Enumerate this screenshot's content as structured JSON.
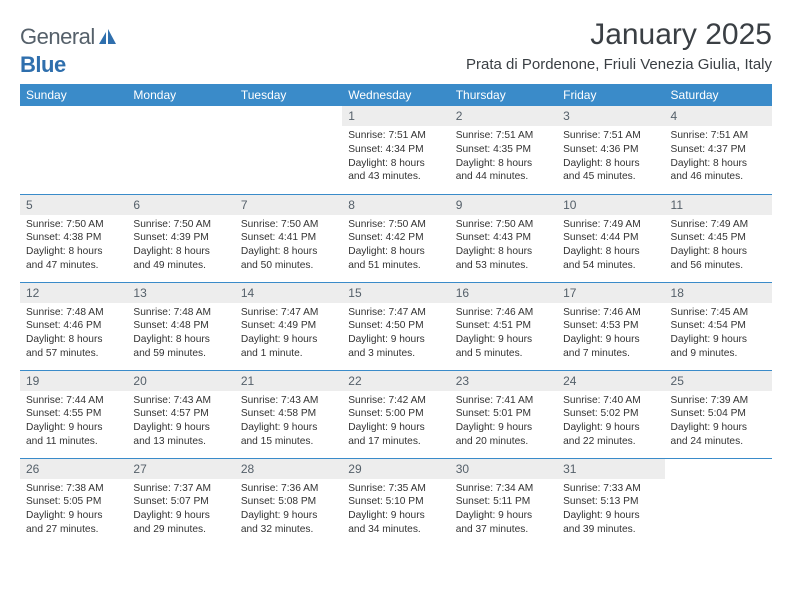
{
  "logo": {
    "part1": "General",
    "part2": "Blue"
  },
  "title": "January 2025",
  "location": "Prata di Pordenone, Friuli Venezia Giulia, Italy",
  "colors": {
    "header_bg": "#3a8bc9",
    "header_text": "#ffffff",
    "daynum_bg": "#ededed",
    "border": "#3a8bc9",
    "logo_gray": "#55606a",
    "logo_blue": "#2f6fad"
  },
  "day_headers": [
    "Sunday",
    "Monday",
    "Tuesday",
    "Wednesday",
    "Thursday",
    "Friday",
    "Saturday"
  ],
  "weeks": [
    [
      {
        "n": "",
        "lines": []
      },
      {
        "n": "",
        "lines": []
      },
      {
        "n": "",
        "lines": []
      },
      {
        "n": "1",
        "lines": [
          "Sunrise: 7:51 AM",
          "Sunset: 4:34 PM",
          "Daylight: 8 hours",
          "and 43 minutes."
        ]
      },
      {
        "n": "2",
        "lines": [
          "Sunrise: 7:51 AM",
          "Sunset: 4:35 PM",
          "Daylight: 8 hours",
          "and 44 minutes."
        ]
      },
      {
        "n": "3",
        "lines": [
          "Sunrise: 7:51 AM",
          "Sunset: 4:36 PM",
          "Daylight: 8 hours",
          "and 45 minutes."
        ]
      },
      {
        "n": "4",
        "lines": [
          "Sunrise: 7:51 AM",
          "Sunset: 4:37 PM",
          "Daylight: 8 hours",
          "and 46 minutes."
        ]
      }
    ],
    [
      {
        "n": "5",
        "lines": [
          "Sunrise: 7:50 AM",
          "Sunset: 4:38 PM",
          "Daylight: 8 hours",
          "and 47 minutes."
        ]
      },
      {
        "n": "6",
        "lines": [
          "Sunrise: 7:50 AM",
          "Sunset: 4:39 PM",
          "Daylight: 8 hours",
          "and 49 minutes."
        ]
      },
      {
        "n": "7",
        "lines": [
          "Sunrise: 7:50 AM",
          "Sunset: 4:41 PM",
          "Daylight: 8 hours",
          "and 50 minutes."
        ]
      },
      {
        "n": "8",
        "lines": [
          "Sunrise: 7:50 AM",
          "Sunset: 4:42 PM",
          "Daylight: 8 hours",
          "and 51 minutes."
        ]
      },
      {
        "n": "9",
        "lines": [
          "Sunrise: 7:50 AM",
          "Sunset: 4:43 PM",
          "Daylight: 8 hours",
          "and 53 minutes."
        ]
      },
      {
        "n": "10",
        "lines": [
          "Sunrise: 7:49 AM",
          "Sunset: 4:44 PM",
          "Daylight: 8 hours",
          "and 54 minutes."
        ]
      },
      {
        "n": "11",
        "lines": [
          "Sunrise: 7:49 AM",
          "Sunset: 4:45 PM",
          "Daylight: 8 hours",
          "and 56 minutes."
        ]
      }
    ],
    [
      {
        "n": "12",
        "lines": [
          "Sunrise: 7:48 AM",
          "Sunset: 4:46 PM",
          "Daylight: 8 hours",
          "and 57 minutes."
        ]
      },
      {
        "n": "13",
        "lines": [
          "Sunrise: 7:48 AM",
          "Sunset: 4:48 PM",
          "Daylight: 8 hours",
          "and 59 minutes."
        ]
      },
      {
        "n": "14",
        "lines": [
          "Sunrise: 7:47 AM",
          "Sunset: 4:49 PM",
          "Daylight: 9 hours",
          "and 1 minute."
        ]
      },
      {
        "n": "15",
        "lines": [
          "Sunrise: 7:47 AM",
          "Sunset: 4:50 PM",
          "Daylight: 9 hours",
          "and 3 minutes."
        ]
      },
      {
        "n": "16",
        "lines": [
          "Sunrise: 7:46 AM",
          "Sunset: 4:51 PM",
          "Daylight: 9 hours",
          "and 5 minutes."
        ]
      },
      {
        "n": "17",
        "lines": [
          "Sunrise: 7:46 AM",
          "Sunset: 4:53 PM",
          "Daylight: 9 hours",
          "and 7 minutes."
        ]
      },
      {
        "n": "18",
        "lines": [
          "Sunrise: 7:45 AM",
          "Sunset: 4:54 PM",
          "Daylight: 9 hours",
          "and 9 minutes."
        ]
      }
    ],
    [
      {
        "n": "19",
        "lines": [
          "Sunrise: 7:44 AM",
          "Sunset: 4:55 PM",
          "Daylight: 9 hours",
          "and 11 minutes."
        ]
      },
      {
        "n": "20",
        "lines": [
          "Sunrise: 7:43 AM",
          "Sunset: 4:57 PM",
          "Daylight: 9 hours",
          "and 13 minutes."
        ]
      },
      {
        "n": "21",
        "lines": [
          "Sunrise: 7:43 AM",
          "Sunset: 4:58 PM",
          "Daylight: 9 hours",
          "and 15 minutes."
        ]
      },
      {
        "n": "22",
        "lines": [
          "Sunrise: 7:42 AM",
          "Sunset: 5:00 PM",
          "Daylight: 9 hours",
          "and 17 minutes."
        ]
      },
      {
        "n": "23",
        "lines": [
          "Sunrise: 7:41 AM",
          "Sunset: 5:01 PM",
          "Daylight: 9 hours",
          "and 20 minutes."
        ]
      },
      {
        "n": "24",
        "lines": [
          "Sunrise: 7:40 AM",
          "Sunset: 5:02 PM",
          "Daylight: 9 hours",
          "and 22 minutes."
        ]
      },
      {
        "n": "25",
        "lines": [
          "Sunrise: 7:39 AM",
          "Sunset: 5:04 PM",
          "Daylight: 9 hours",
          "and 24 minutes."
        ]
      }
    ],
    [
      {
        "n": "26",
        "lines": [
          "Sunrise: 7:38 AM",
          "Sunset: 5:05 PM",
          "Daylight: 9 hours",
          "and 27 minutes."
        ]
      },
      {
        "n": "27",
        "lines": [
          "Sunrise: 7:37 AM",
          "Sunset: 5:07 PM",
          "Daylight: 9 hours",
          "and 29 minutes."
        ]
      },
      {
        "n": "28",
        "lines": [
          "Sunrise: 7:36 AM",
          "Sunset: 5:08 PM",
          "Daylight: 9 hours",
          "and 32 minutes."
        ]
      },
      {
        "n": "29",
        "lines": [
          "Sunrise: 7:35 AM",
          "Sunset: 5:10 PM",
          "Daylight: 9 hours",
          "and 34 minutes."
        ]
      },
      {
        "n": "30",
        "lines": [
          "Sunrise: 7:34 AM",
          "Sunset: 5:11 PM",
          "Daylight: 9 hours",
          "and 37 minutes."
        ]
      },
      {
        "n": "31",
        "lines": [
          "Sunrise: 7:33 AM",
          "Sunset: 5:13 PM",
          "Daylight: 9 hours",
          "and 39 minutes."
        ]
      },
      {
        "n": "",
        "lines": []
      }
    ]
  ]
}
